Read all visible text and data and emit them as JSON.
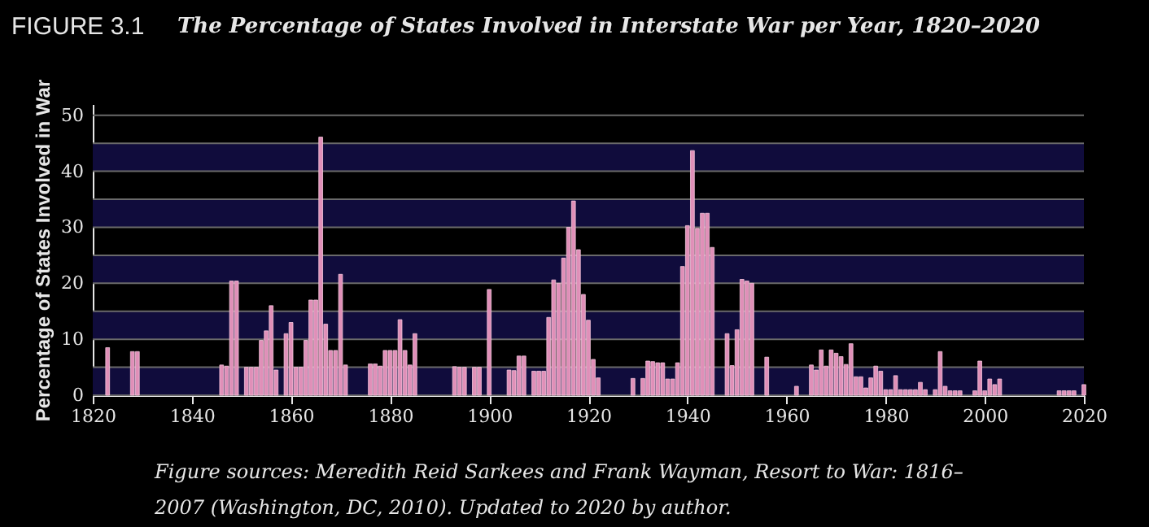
{
  "chart_data": {
    "type": "bar",
    "title": "FIGURE 3.1",
    "subtitle": "The Percentage of States Involved in Interstate War per Year, 1820–2020",
    "ylabel": "Percentage of States Involved in War",
    "annotations": [
      "Figure sources: Meredith Reid Sarkees and Frank Wayman, Resort to War: 1816–",
      "2007 (Washington, DC, 2010). Updated to 2020 by author."
    ],
    "x": [
      1823,
      1828,
      1829,
      1846,
      1847,
      1848,
      1849,
      1851,
      1852,
      1853,
      1854,
      1855,
      1856,
      1857,
      1859,
      1860,
      1861,
      1862,
      1863,
      1864,
      1865,
      1866,
      1867,
      1868,
      1869,
      1870,
      1871,
      1876,
      1877,
      1878,
      1879,
      1880,
      1881,
      1882,
      1883,
      1884,
      1885,
      1893,
      1894,
      1895,
      1897,
      1898,
      1900,
      1904,
      1905,
      1906,
      1907,
      1909,
      1910,
      1911,
      1912,
      1913,
      1914,
      1915,
      1916,
      1917,
      1918,
      1919,
      1920,
      1921,
      1922,
      1929,
      1931,
      1932,
      1933,
      1934,
      1935,
      1936,
      1937,
      1938,
      1939,
      1940,
      1941,
      1942,
      1943,
      1944,
      1945,
      1948,
      1949,
      1950,
      1951,
      1952,
      1953,
      1956,
      1962,
      1965,
      1966,
      1967,
      1968,
      1969,
      1970,
      1971,
      1972,
      1973,
      1974,
      1975,
      1976,
      1977,
      1978,
      1979,
      1980,
      1981,
      1982,
      1983,
      1984,
      1985,
      1986,
      1987,
      1988,
      1990,
      1991,
      1992,
      1993,
      1994,
      1995,
      1998,
      1999,
      2000,
      2001,
      2002,
      2003,
      2015,
      2016,
      2017,
      2018,
      2020
    ],
    "values": [
      8.5,
      7.8,
      7.8,
      5.4,
      5.2,
      20.4,
      20.4,
      5,
      5,
      5,
      9.8,
      11.5,
      16,
      4.5,
      11,
      13,
      5,
      5,
      9.8,
      17,
      17,
      46.1,
      12.7,
      8,
      8,
      21.6,
      5.4,
      5.6,
      5.6,
      5.2,
      8,
      8,
      8,
      13.5,
      8,
      5.4,
      11,
      5.1,
      5,
      5,
      5,
      5,
      18.9,
      4.5,
      4.4,
      7,
      7,
      4.3,
      4.3,
      4.3,
      13.9,
      20.6,
      20,
      24.5,
      30,
      34.7,
      26,
      18,
      13.4,
      6.4,
      3.1,
      3,
      3,
      6.1,
      6,
      5.8,
      5.8,
      2.9,
      2.9,
      5.8,
      23,
      30.3,
      43.7,
      29.8,
      32.5,
      32.5,
      26.4,
      11,
      5.3,
      11.7,
      20.7,
      20.4,
      20,
      6.8,
      1.6,
      5.4,
      4.5,
      8.1,
      5.2,
      8.1,
      7.5,
      6.9,
      5.5,
      9.2,
      3.3,
      3.3,
      1.3,
      3.1,
      5.2,
      4.3,
      1,
      1,
      3.5,
      1,
      1,
      1,
      1,
      2.3,
      1,
      1,
      7.8,
      1.6,
      0.8,
      0.8,
      0.8,
      0.8,
      6.1,
      0.8,
      2.9,
      1.9,
      2.9,
      0.8,
      0.8,
      0.8,
      0.8,
      1.9
    ],
    "color": "#e08fb8",
    "xlim": [
      1820,
      2020
    ],
    "xticks": [
      1820,
      1840,
      1860,
      1880,
      1900,
      1920,
      1940,
      1960,
      1980,
      2000,
      2020
    ],
    "ylim": [
      0,
      52
    ],
    "yticks": [
      0,
      {
        "value": 5,
        "label": null
      },
      10,
      {
        "value": 15,
        "label": null
      },
      20,
      {
        "value": 25,
        "label": null
      },
      30,
      {
        "value": 35,
        "label": null
      },
      40,
      {
        "value": 45,
        "label": null
      },
      50
    ],
    "grid": "y",
    "bands": [
      {
        "axis": "y",
        "from": 0,
        "to": 5,
        "color": "#100c3c"
      },
      {
        "axis": "y",
        "from": 10,
        "to": 15,
        "color": "#100c3c"
      },
      {
        "axis": "y",
        "from": 20,
        "to": 25,
        "color": "#100c3c"
      },
      {
        "axis": "y",
        "from": 30,
        "to": 35,
        "color": "#100c3c"
      },
      {
        "axis": "y",
        "from": 40,
        "to": 45,
        "color": "#100c3c"
      }
    ]
  }
}
